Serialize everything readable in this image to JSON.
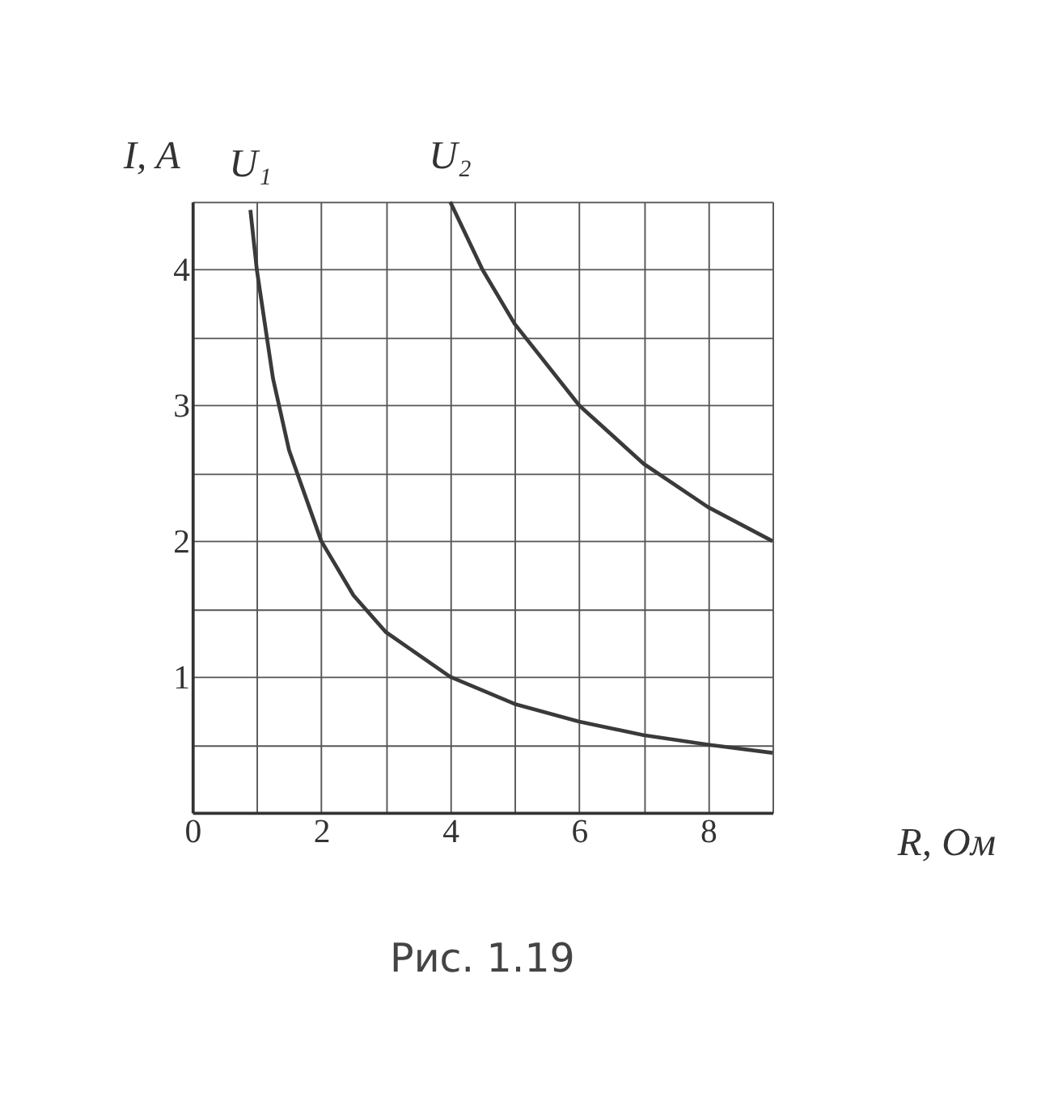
{
  "chart_data": {
    "type": "line",
    "xlabel": "R, Ом",
    "ylabel": "I, A",
    "annotations": [
      "Рис. 1.19"
    ],
    "xlim": [
      0,
      9
    ],
    "ylim": [
      0,
      4.5
    ],
    "xticks": [
      0,
      {
        "value": 1,
        "label": null
      },
      2,
      {
        "value": 3,
        "label": null
      },
      4,
      {
        "value": 5,
        "label": null
      },
      6,
      {
        "value": 7,
        "label": null
      },
      8,
      {
        "value": 9,
        "label": null
      }
    ],
    "yticks": [
      {
        "value": 0,
        "label": null
      },
      {
        "value": 0.5,
        "label": null
      },
      1,
      {
        "value": 1.5,
        "label": null
      },
      2,
      {
        "value": 2.5,
        "label": null
      },
      3,
      {
        "value": 3.5,
        "label": null
      },
      4,
      {
        "value": 4.5,
        "label": null
      }
    ],
    "grid": true,
    "legend": false,
    "marker": "none",
    "line_style": "solid",
    "series": [
      {
        "name": "U₁",
        "color": "#3a3a3a",
        "x": [
          0.9,
          1,
          1.25,
          1.5,
          2,
          2.5,
          3,
          4,
          5,
          6,
          7,
          8,
          9
        ],
        "values": [
          4.44,
          4,
          3.2,
          2.67,
          2,
          1.6,
          1.33,
          1,
          0.8,
          0.67,
          0.57,
          0.5,
          0.44
        ]
      },
      {
        "name": "U₂",
        "color": "#3a3a3a",
        "x": [
          4,
          4.5,
          5,
          6,
          7,
          8,
          9
        ],
        "values": [
          4.5,
          4,
          3.6,
          3,
          2.57,
          2.25,
          2
        ]
      }
    ]
  }
}
